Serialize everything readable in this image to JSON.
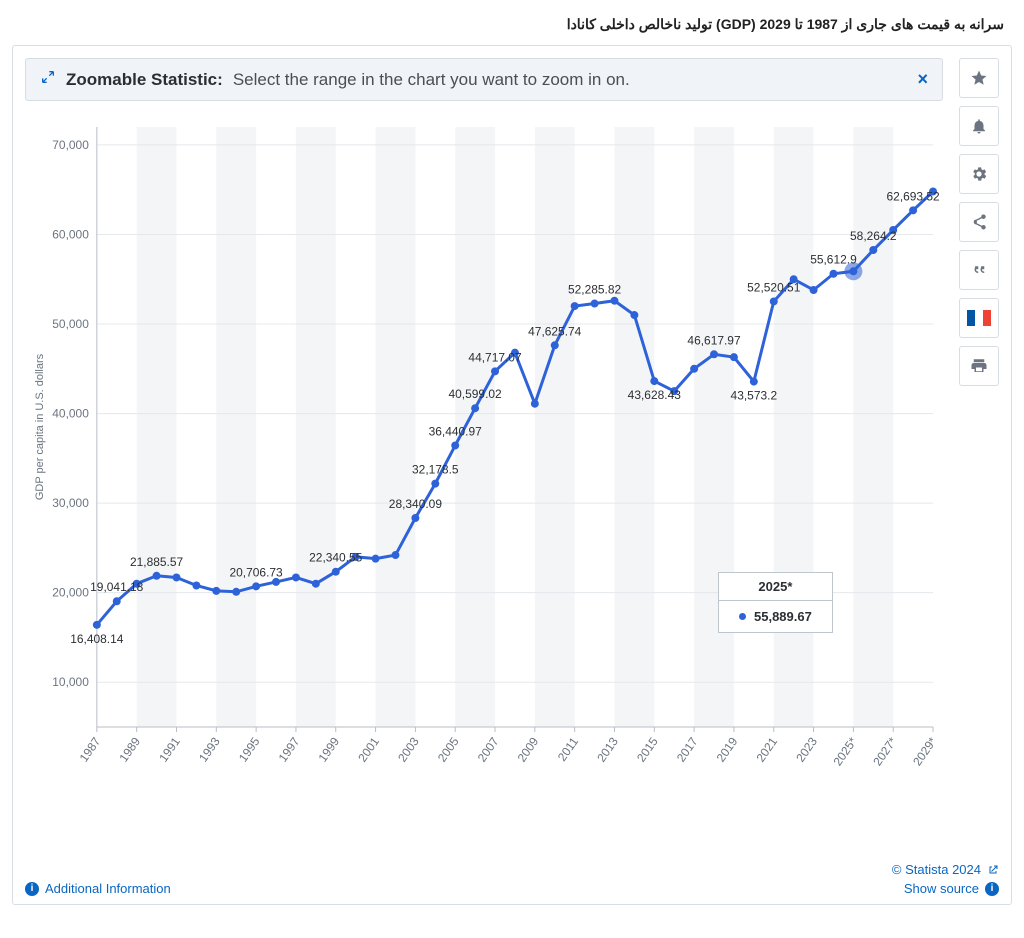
{
  "page_title": "سرانه به قیمت های جاری از 1987 تا 2029 (GDP) تولید ناخالص داخلی کانادا",
  "banner": {
    "title": "Zoomable Statistic:",
    "desc": "Select the range in the chart you want to zoom in on.",
    "close_symbol": "×"
  },
  "footer": {
    "additional_info": "Additional Information",
    "copyright": "© Statista 2024",
    "show_source": "Show source"
  },
  "tooltip": {
    "year": "2025*",
    "value": "55,889.67",
    "dot_color": "#2e62d9"
  },
  "chart": {
    "type": "line",
    "y_label": "GDP per capita in U.S. dollars",
    "ylim": [
      5000,
      72000
    ],
    "yticks": [
      10000,
      20000,
      30000,
      40000,
      50000,
      60000,
      70000
    ],
    "ytick_labels": [
      "10,000",
      "20,000",
      "30,000",
      "40,000",
      "50,000",
      "60,000",
      "70,000"
    ],
    "x_labels": [
      "1987",
      "1989",
      "1991",
      "1993",
      "1995",
      "1997",
      "1999",
      "2001",
      "2003",
      "2005",
      "2007",
      "2009",
      "2011",
      "2013",
      "2015",
      "2017",
      "2019",
      "2021",
      "2023",
      "2025*",
      "2027*",
      "2029*"
    ],
    "series_color": "#2e62d9",
    "marker_color": "#2e62d9",
    "highlight_marker_color": "#2e62d9",
    "background_color": "#ffffff",
    "stripe_color": "#f4f5f7",
    "axis_text_color": "#6b7480",
    "label_text_color": "#2b2f33",
    "marker_radius": 4,
    "highlight_radius": 9,
    "line_width": 3,
    "years": [
      "1987",
      "1988",
      "1989",
      "1990",
      "1991",
      "1992",
      "1993",
      "1994",
      "1995",
      "1996",
      "1997",
      "1998",
      "1999",
      "2000",
      "2001",
      "2002",
      "2003",
      "2004",
      "2005",
      "2006",
      "2007",
      "2008",
      "2009",
      "2010",
      "2011",
      "2012",
      "2013",
      "2014",
      "2015",
      "2016",
      "2017",
      "2018",
      "2019",
      "2020",
      "2021",
      "2022",
      "2023",
      "2024*",
      "2025*",
      "2026*",
      "2027*",
      "2028*",
      "2029*"
    ],
    "values": [
      16408.14,
      19041.18,
      21000,
      21885.57,
      21700,
      20800,
      20200,
      20100,
      20706.73,
      21200,
      21700,
      21000,
      22340.55,
      24000,
      23800,
      24200,
      28340.09,
      32178.5,
      36440.97,
      40599.02,
      44717.07,
      46800,
      41100,
      47625.74,
      52000,
      52285.82,
      52600,
      51000,
      43628.43,
      42500,
      45000,
      46617.97,
      46300,
      43573.2,
      52520.51,
      55000,
      53800,
      55612.9,
      55889.67,
      58264.2,
      60500,
      62693.52,
      64800
    ],
    "highlight_index": 38,
    "data_labels": [
      {
        "i": 0,
        "text": "16,408.14",
        "dy": 18
      },
      {
        "i": 1,
        "text": "19,041.18",
        "dy": -10
      },
      {
        "i": 3,
        "text": "21,885.57",
        "dy": -10
      },
      {
        "i": 8,
        "text": "20,706.73",
        "dy": -10
      },
      {
        "i": 12,
        "text": "22,340.55",
        "dy": -10
      },
      {
        "i": 16,
        "text": "28,340.09",
        "dy": -10
      },
      {
        "i": 17,
        "text": "32,178.5",
        "dy": -10
      },
      {
        "i": 18,
        "text": "36,440.97",
        "dy": -10
      },
      {
        "i": 19,
        "text": "40,599.02",
        "dy": -10
      },
      {
        "i": 20,
        "text": "44,717.07",
        "dy": -10
      },
      {
        "i": 23,
        "text": "47,625.74",
        "dy": -10
      },
      {
        "i": 25,
        "text": "52,285.82",
        "dy": -10
      },
      {
        "i": 28,
        "text": "43,628.43",
        "dy": 18
      },
      {
        "i": 31,
        "text": "46,617.97",
        "dy": -10
      },
      {
        "i": 33,
        "text": "43,573.2",
        "dy": 18
      },
      {
        "i": 34,
        "text": "52,520.51",
        "dy": -10
      },
      {
        "i": 37,
        "text": "55,612.9",
        "dy": -10
      },
      {
        "i": 39,
        "text": "58,264.2",
        "dy": -10
      },
      {
        "i": 41,
        "text": "62,693.52",
        "dy": -10
      }
    ]
  },
  "flag": {
    "blue": "#0055a4",
    "white": "#ffffff",
    "red": "#ef4135"
  }
}
